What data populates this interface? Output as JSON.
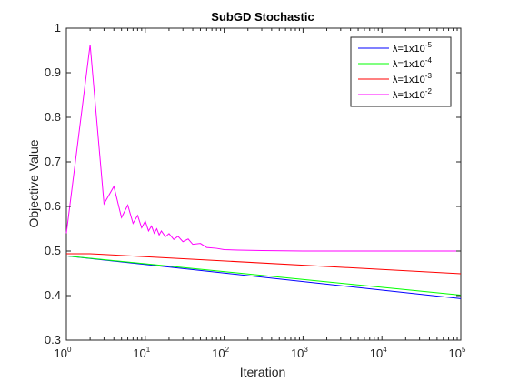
{
  "chart_data": {
    "type": "line",
    "title": "SubGD Stochastic",
    "xlabel": "Iteration",
    "ylabel": "Objective Value",
    "xscale": "log",
    "xlim": [
      1,
      100000
    ],
    "ylim": [
      0.3,
      1.0
    ],
    "grid": false,
    "legend_placement": "top-right",
    "x_tick_labels": [
      {
        "base": "10",
        "exp": "0"
      },
      {
        "base": "10",
        "exp": "1"
      },
      {
        "base": "10",
        "exp": "2"
      },
      {
        "base": "10",
        "exp": "3"
      },
      {
        "base": "10",
        "exp": "4"
      },
      {
        "base": "10",
        "exp": "5"
      }
    ],
    "y_tick_labels": [
      "0.3",
      "0.4",
      "0.5",
      "0.6",
      "0.7",
      "0.8",
      "0.9",
      "1"
    ],
    "series": [
      {
        "name": "λ=1x10-5",
        "label_prefix": "λ=1x10",
        "label_exp": "-5",
        "color": "#0000ff",
        "x": [
          1,
          100000
        ],
        "y": [
          0.489,
          0.393
        ]
      },
      {
        "name": "λ=1x10-4",
        "label_prefix": "λ=1x10",
        "label_exp": "-4",
        "color": "#00ff00",
        "x": [
          1,
          100000
        ],
        "y": [
          0.489,
          0.401
        ]
      },
      {
        "name": "λ=1x10-3",
        "label_prefix": "λ=1x10",
        "label_exp": "-3",
        "color": "#ff0000",
        "x": [
          1,
          2,
          100000
        ],
        "y": [
          0.494,
          0.494,
          0.449
        ]
      },
      {
        "name": "λ=1x10-2",
        "label_prefix": "λ=1x10",
        "label_exp": "-2",
        "color": "#ff00ff",
        "x": [
          1,
          2,
          3,
          4,
          5,
          6,
          7,
          8,
          9,
          10,
          11,
          12,
          13,
          14,
          15,
          16,
          18,
          20,
          23,
          26,
          30,
          35,
          40,
          50,
          60,
          80,
          100,
          150,
          300,
          1000,
          100000
        ],
        "y": [
          0.54,
          0.963,
          0.606,
          0.645,
          0.575,
          0.603,
          0.562,
          0.58,
          0.552,
          0.567,
          0.545,
          0.556,
          0.54,
          0.55,
          0.536,
          0.545,
          0.532,
          0.539,
          0.526,
          0.533,
          0.521,
          0.527,
          0.515,
          0.517,
          0.508,
          0.506,
          0.503,
          0.502,
          0.501,
          0.5,
          0.5
        ]
      }
    ]
  }
}
